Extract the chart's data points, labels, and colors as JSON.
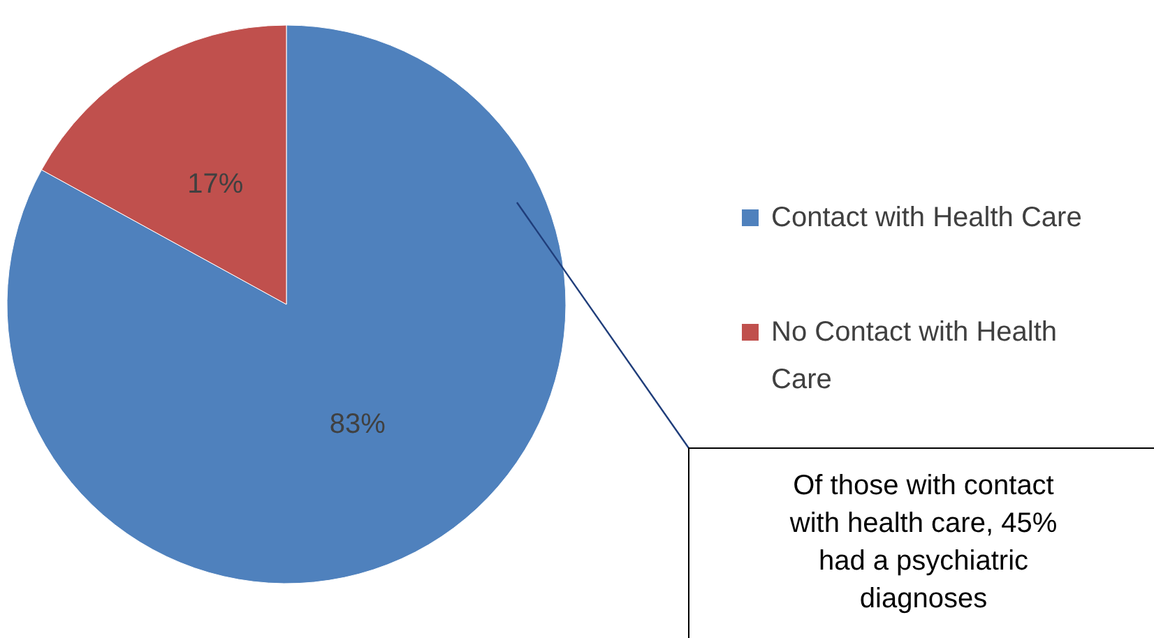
{
  "chart_data": {
    "type": "pie",
    "categories": [
      "Contact with Health Care",
      "No Contact with Health Care"
    ],
    "values": [
      83,
      17
    ],
    "colors": [
      "#4f81bd",
      "#c0504d"
    ],
    "value_labels": [
      "83%",
      "17%"
    ],
    "legend": "right",
    "annotations": [
      "Of those with contact with health care, 45% had a psychiatric diagnoses"
    ]
  }
}
